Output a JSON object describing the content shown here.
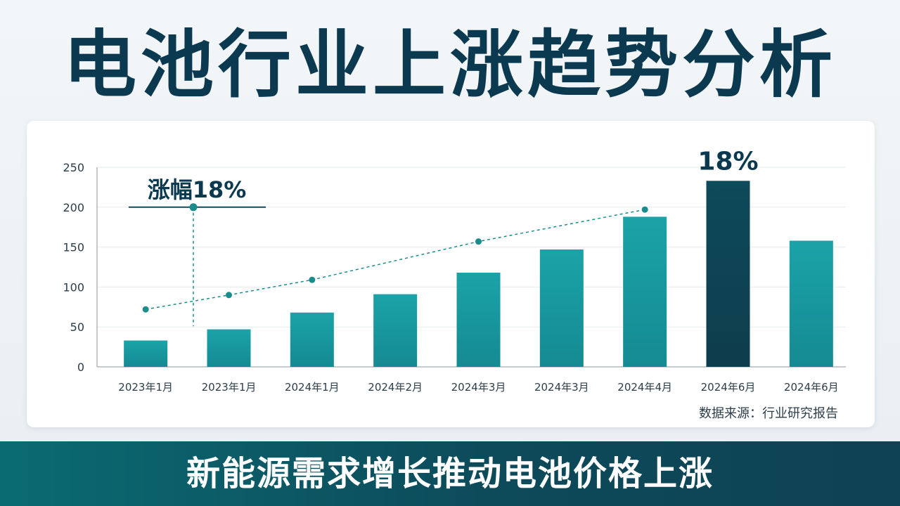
{
  "title": "电池行业上涨趋势分析",
  "subtitle": "新能源需求增长推动电池价格上涨",
  "source": "数据来源：行业研究报告",
  "colors": {
    "bar": "#1aa3a8",
    "bar_highlight": "#0d4a5a",
    "line": "#1b8c8c",
    "title": "#0b3a50",
    "banner": "#0d5560"
  },
  "chart_data": {
    "type": "bar",
    "categories": [
      "2023年1月",
      "2023年1月",
      "2024年1月",
      "2024年2月",
      "2024年3月",
      "2024年3月",
      "2024年4月",
      "2024年6月",
      "2024年6月"
    ],
    "series": [
      {
        "values": [
          33,
          47,
          68,
          91,
          118,
          147,
          188,
          233,
          158
        ]
      }
    ],
    "trend_line": {
      "type": "line",
      "values": [
        72,
        90,
        109,
        157,
        197
      ],
      "positions": [
        0,
        1,
        2,
        4,
        6
      ]
    },
    "highlight_index": 7,
    "yticks": [
      0,
      50,
      100,
      150,
      200,
      250
    ],
    "ylim": [
      0,
      250
    ],
    "grid": true,
    "annotations": {
      "rise_label": "涨幅18%",
      "rise_point_value": 200,
      "peak_label": "18%"
    }
  }
}
